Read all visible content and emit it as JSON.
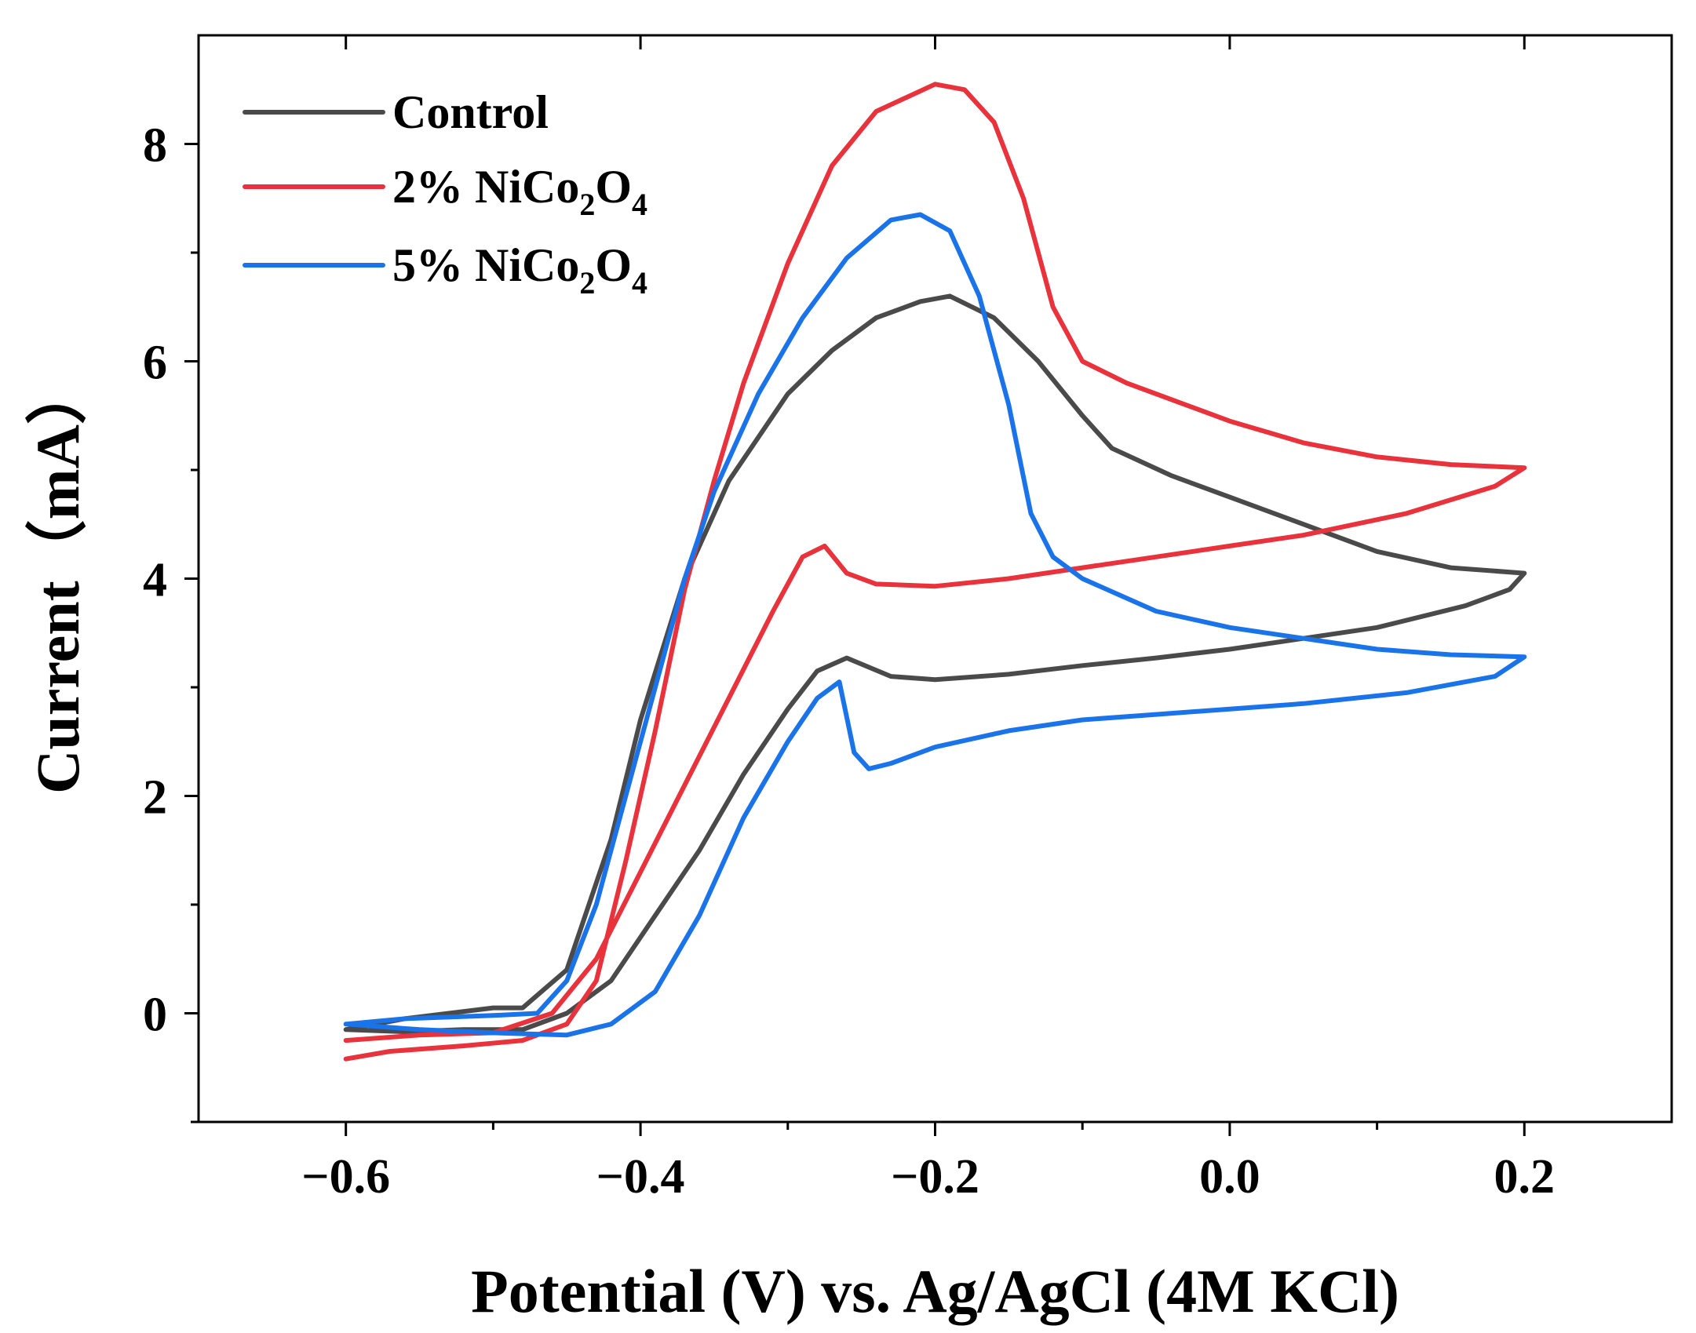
{
  "chart_data": {
    "type": "line",
    "title": "",
    "xlabel": "Potential (V) vs. Ag/AgCl (4M KCl)",
    "ylabel": "Current（mA）",
    "xlim": [
      -0.7,
      0.3
    ],
    "ylim": [
      -1.0,
      9.0
    ],
    "xticks": [
      -0.6,
      -0.4,
      -0.2,
      0.0,
      0.2
    ],
    "xtick_labels": [
      "−0.6",
      "−0.4",
      "−0.2",
      "0.0",
      "0.2"
    ],
    "x_minor_ticks": [
      -0.5,
      -0.3,
      -0.1,
      0.1
    ],
    "yticks": [
      0,
      2,
      4,
      6,
      8
    ],
    "ytick_labels": [
      "0",
      "2",
      "4",
      "6",
      "8"
    ],
    "y_minor_ticks": [
      -1,
      1,
      3,
      5,
      7
    ],
    "grid": false,
    "legend_position": "top-left",
    "series": [
      {
        "name": "Control",
        "legend_label": "Control",
        "legend_base": "Control",
        "legend_sub1": "",
        "legend_mid": "",
        "legend_sub2": "",
        "color": "#4a4a4a",
        "points": [
          [
            -0.6,
            -0.15
          ],
          [
            -0.56,
            -0.05
          ],
          [
            -0.5,
            0.05
          ],
          [
            -0.48,
            0.05
          ],
          [
            -0.45,
            0.4
          ],
          [
            -0.42,
            1.6
          ],
          [
            -0.4,
            2.7
          ],
          [
            -0.37,
            4.0
          ],
          [
            -0.34,
            4.9
          ],
          [
            -0.3,
            5.7
          ],
          [
            -0.27,
            6.1
          ],
          [
            -0.24,
            6.4
          ],
          [
            -0.21,
            6.55
          ],
          [
            -0.19,
            6.6
          ],
          [
            -0.16,
            6.4
          ],
          [
            -0.13,
            6.0
          ],
          [
            -0.1,
            5.5
          ],
          [
            -0.08,
            5.2
          ],
          [
            -0.04,
            4.95
          ],
          [
            0.0,
            4.75
          ],
          [
            0.05,
            4.5
          ],
          [
            0.1,
            4.25
          ],
          [
            0.15,
            4.1
          ],
          [
            0.2,
            4.05
          ],
          [
            0.19,
            3.9
          ],
          [
            0.16,
            3.75
          ],
          [
            0.1,
            3.55
          ],
          [
            0.05,
            3.45
          ],
          [
            0.0,
            3.35
          ],
          [
            -0.05,
            3.27
          ],
          [
            -0.1,
            3.2
          ],
          [
            -0.15,
            3.12
          ],
          [
            -0.2,
            3.07
          ],
          [
            -0.23,
            3.1
          ],
          [
            -0.26,
            3.27
          ],
          [
            -0.28,
            3.15
          ],
          [
            -0.3,
            2.8
          ],
          [
            -0.33,
            2.2
          ],
          [
            -0.36,
            1.5
          ],
          [
            -0.39,
            0.9
          ],
          [
            -0.42,
            0.3
          ],
          [
            -0.45,
            0.0
          ],
          [
            -0.48,
            -0.15
          ],
          [
            -0.52,
            -0.15
          ],
          [
            -0.56,
            -0.17
          ],
          [
            -0.6,
            -0.15
          ]
        ]
      },
      {
        "name": "2% NiCo2O4",
        "legend_label": "2% NiCo2O4",
        "legend_base": "2% NiCo",
        "legend_sub1": "2",
        "legend_mid": "O",
        "legend_sub2": "4",
        "color": "#e8323c",
        "points": [
          [
            -0.6,
            -0.42
          ],
          [
            -0.57,
            -0.35
          ],
          [
            -0.52,
            -0.3
          ],
          [
            -0.48,
            -0.25
          ],
          [
            -0.45,
            -0.1
          ],
          [
            -0.43,
            0.3
          ],
          [
            -0.41,
            1.4
          ],
          [
            -0.39,
            2.6
          ],
          [
            -0.37,
            3.9
          ],
          [
            -0.35,
            4.9
          ],
          [
            -0.33,
            5.8
          ],
          [
            -0.3,
            6.9
          ],
          [
            -0.27,
            7.8
          ],
          [
            -0.24,
            8.3
          ],
          [
            -0.2,
            8.55
          ],
          [
            -0.18,
            8.5
          ],
          [
            -0.16,
            8.2
          ],
          [
            -0.14,
            7.5
          ],
          [
            -0.12,
            6.5
          ],
          [
            -0.1,
            6.0
          ],
          [
            -0.07,
            5.8
          ],
          [
            -0.03,
            5.6
          ],
          [
            0.0,
            5.45
          ],
          [
            0.05,
            5.25
          ],
          [
            0.1,
            5.12
          ],
          [
            0.15,
            5.05
          ],
          [
            0.2,
            5.02
          ],
          [
            0.18,
            4.85
          ],
          [
            0.12,
            4.6
          ],
          [
            0.05,
            4.4
          ],
          [
            0.0,
            4.3
          ],
          [
            -0.05,
            4.2
          ],
          [
            -0.1,
            4.1
          ],
          [
            -0.15,
            4.0
          ],
          [
            -0.2,
            3.93
          ],
          [
            -0.24,
            3.95
          ],
          [
            -0.26,
            4.05
          ],
          [
            -0.275,
            4.3
          ],
          [
            -0.29,
            4.2
          ],
          [
            -0.31,
            3.7
          ],
          [
            -0.34,
            2.9
          ],
          [
            -0.37,
            2.1
          ],
          [
            -0.4,
            1.3
          ],
          [
            -0.43,
            0.5
          ],
          [
            -0.46,
            0.0
          ],
          [
            -0.5,
            -0.18
          ],
          [
            -0.55,
            -0.2
          ],
          [
            -0.6,
            -0.25
          ]
        ]
      },
      {
        "name": "5% NiCo2O4",
        "legend_label": "5% NiCo2O4",
        "legend_base": "5% NiCo",
        "legend_sub1": "2",
        "legend_mid": "O",
        "legend_sub2": "4",
        "color": "#1a73e8",
        "points": [
          [
            -0.6,
            -0.1
          ],
          [
            -0.56,
            -0.05
          ],
          [
            -0.5,
            -0.02
          ],
          [
            -0.47,
            0.0
          ],
          [
            -0.45,
            0.3
          ],
          [
            -0.43,
            1.0
          ],
          [
            -0.41,
            2.0
          ],
          [
            -0.39,
            3.0
          ],
          [
            -0.37,
            4.0
          ],
          [
            -0.35,
            4.8
          ],
          [
            -0.32,
            5.7
          ],
          [
            -0.29,
            6.4
          ],
          [
            -0.26,
            6.95
          ],
          [
            -0.23,
            7.3
          ],
          [
            -0.21,
            7.35
          ],
          [
            -0.19,
            7.2
          ],
          [
            -0.17,
            6.6
          ],
          [
            -0.15,
            5.6
          ],
          [
            -0.135,
            4.6
          ],
          [
            -0.12,
            4.2
          ],
          [
            -0.1,
            4.0
          ],
          [
            -0.05,
            3.7
          ],
          [
            0.0,
            3.55
          ],
          [
            0.05,
            3.45
          ],
          [
            0.1,
            3.35
          ],
          [
            0.15,
            3.3
          ],
          [
            0.2,
            3.28
          ],
          [
            0.18,
            3.1
          ],
          [
            0.12,
            2.95
          ],
          [
            0.05,
            2.85
          ],
          [
            0.0,
            2.8
          ],
          [
            -0.05,
            2.75
          ],
          [
            -0.1,
            2.7
          ],
          [
            -0.15,
            2.6
          ],
          [
            -0.2,
            2.45
          ],
          [
            -0.23,
            2.3
          ],
          [
            -0.245,
            2.25
          ],
          [
            -0.255,
            2.4
          ],
          [
            -0.265,
            3.05
          ],
          [
            -0.28,
            2.9
          ],
          [
            -0.3,
            2.5
          ],
          [
            -0.33,
            1.8
          ],
          [
            -0.36,
            0.9
          ],
          [
            -0.39,
            0.2
          ],
          [
            -0.42,
            -0.1
          ],
          [
            -0.45,
            -0.2
          ],
          [
            -0.5,
            -0.18
          ],
          [
            -0.55,
            -0.15
          ],
          [
            -0.6,
            -0.1
          ]
        ]
      }
    ]
  }
}
